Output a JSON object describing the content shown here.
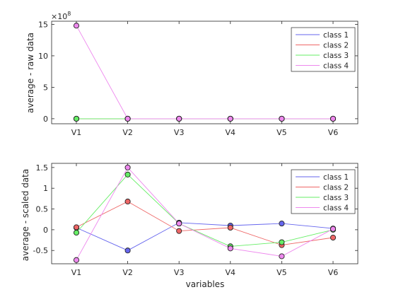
{
  "chart_data": [
    {
      "type": "line",
      "ylabel": "average - raw data",
      "xlabel": "",
      "exponent_label": "×10",
      "exponent_power": "8",
      "categories": [
        "V1",
        "V2",
        "V3",
        "V4",
        "V5",
        "V6"
      ],
      "ylim": [
        -0.8,
        15.5
      ],
      "yticks": [
        0,
        5,
        10,
        15
      ],
      "ytick_labels": [
        "0",
        "5",
        "10",
        "15"
      ],
      "grid": false,
      "legend_position": "top-right",
      "series": [
        {
          "name": "class 1",
          "color": "#6666ee",
          "values": [
            0,
            0,
            0,
            0,
            0,
            0
          ]
        },
        {
          "name": "class 2",
          "color": "#ee6666",
          "values": [
            0,
            0,
            0,
            0,
            0,
            0
          ]
        },
        {
          "name": "class 3",
          "color": "#66ee66",
          "values": [
            0,
            0,
            0,
            0,
            0,
            0
          ]
        },
        {
          "name": "class 4",
          "color": "#ee88ee",
          "values": [
            14.8,
            0,
            0,
            0,
            0,
            0
          ]
        }
      ]
    },
    {
      "type": "line",
      "ylabel": "average - scaled data",
      "xlabel": "variables",
      "categories": [
        "V1",
        "V2",
        "V3",
        "V4",
        "V5",
        "V6"
      ],
      "ylim": [
        -0.82,
        1.6
      ],
      "yticks": [
        -0.5,
        0,
        0.5,
        1,
        1.5
      ],
      "ytick_labels": [
        "-0.5",
        "0",
        "0.5",
        "1",
        "1.5"
      ],
      "grid": false,
      "legend_position": "top-right",
      "series": [
        {
          "name": "class 1",
          "color": "#6666ee",
          "values": [
            0.05,
            -0.5,
            0.17,
            0.1,
            0.15,
            0.03
          ]
        },
        {
          "name": "class 2",
          "color": "#ee6666",
          "values": [
            0.06,
            0.68,
            -0.03,
            0.05,
            -0.37,
            -0.19
          ]
        },
        {
          "name": "class 3",
          "color": "#66ee66",
          "values": [
            -0.07,
            1.33,
            0.15,
            -0.4,
            -0.3,
            0.0
          ]
        },
        {
          "name": "class 4",
          "color": "#ee88ee",
          "values": [
            -0.73,
            1.5,
            0.15,
            -0.45,
            -0.64,
            0.02
          ]
        }
      ]
    }
  ]
}
